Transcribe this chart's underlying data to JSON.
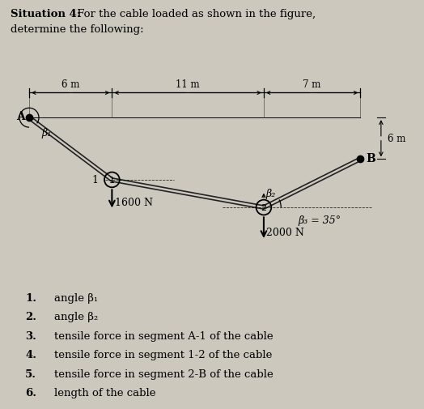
{
  "bg_color": "#ccc8be",
  "title_bold": "Situation 4:",
  "title_normal": " For the cable loaded as shown in the figure,",
  "title_line2": "determine the following:",
  "dim_6m": "6 m",
  "dim_11m": "11 m",
  "dim_7m": "7 m",
  "dim_6m_vert": "6 m",
  "force1": "1600 N",
  "force2": "2000 N",
  "beta1_label": "β₁",
  "beta2_label": "β₂",
  "beta3_label": "β₃ = 35°",
  "node1_label": "1",
  "node2_label": "2",
  "A_label": "A",
  "B_label": "B",
  "A": [
    0,
    0
  ],
  "n1": [
    6,
    -4.5
  ],
  "n2": [
    17,
    -6.5
  ],
  "B": [
    24,
    -3.0
  ],
  "items": [
    [
      "1.",
      "angle β₁"
    ],
    [
      "2.",
      "angle β₂"
    ],
    [
      "3.",
      "tensile force in segment A-1 of the cable"
    ],
    [
      "4.",
      "tensile force in segment 1-2 of the cable"
    ],
    [
      "5.",
      "tensile force in segment 2-B of the cable"
    ],
    [
      "6.",
      "length of the cable"
    ]
  ]
}
